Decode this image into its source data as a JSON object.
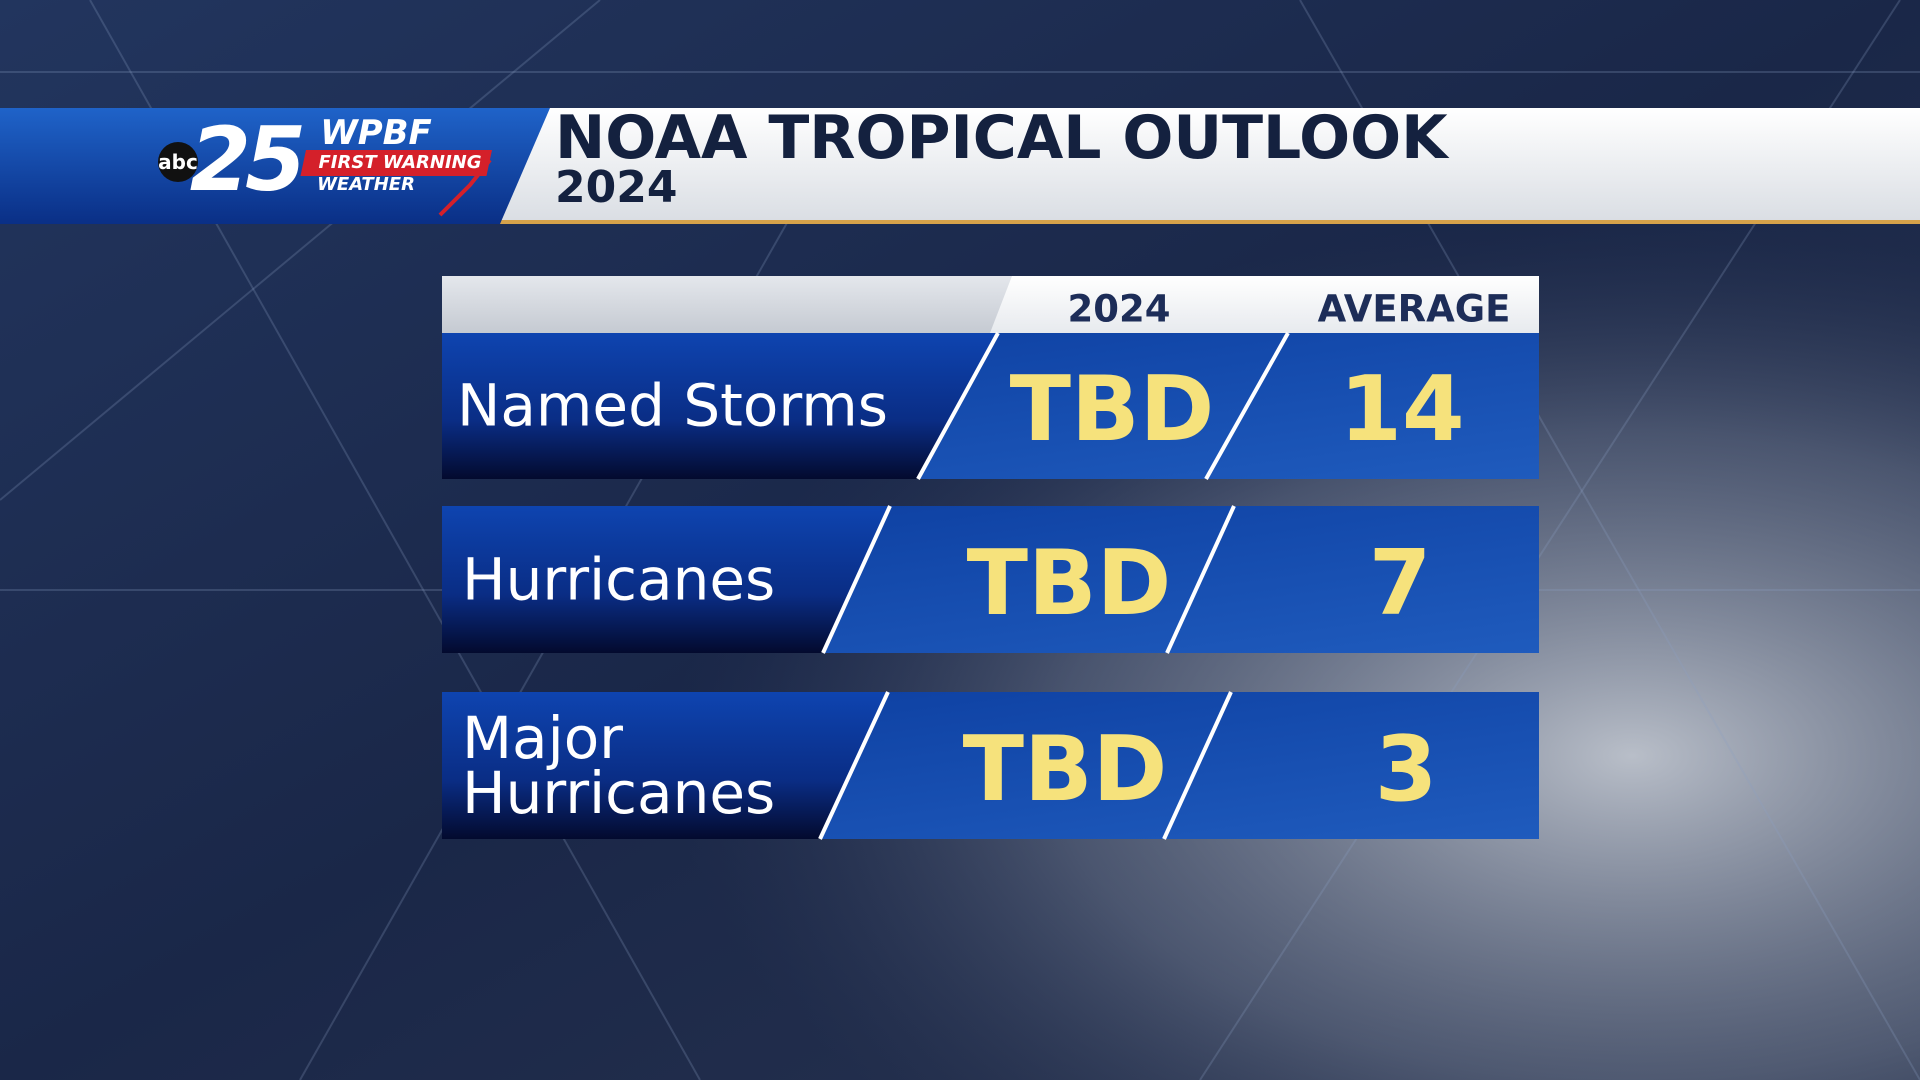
{
  "header": {
    "logo": {
      "network": "abc",
      "channel": "25",
      "station": "WPBF",
      "tagline_1": "FIRST WARNING",
      "tagline_2": "WEATHER"
    },
    "title": "NOAA TROPICAL OUTLOOK",
    "subtitle": "2024"
  },
  "table": {
    "columns": [
      "2024",
      "AVERAGE"
    ],
    "rows": [
      [
        "Named Storms",
        "TBD",
        "14"
      ],
      [
        "Hurricanes",
        "TBD",
        "7"
      ],
      [
        "Major\nHurricanes",
        "TBD",
        "3"
      ]
    ]
  }
}
